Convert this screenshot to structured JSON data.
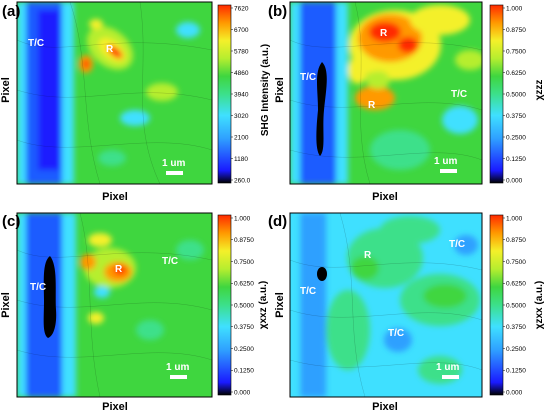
{
  "chart_data": [
    {
      "type": "heatmap",
      "panel": "(a)",
      "xlabel": "Pixel",
      "ylabel": "Pixel",
      "colorbar_label": "SHG Intensity (a.u.)",
      "colorbar_ticks": [
        "7620",
        "6700",
        "5780",
        "4860",
        "3940",
        "3020",
        "2100",
        "1180",
        "260.0"
      ],
      "colorbar_range": [
        260,
        7620
      ],
      "regions": [
        "T/C",
        "R"
      ],
      "scale_bar": "1 um",
      "colormap": [
        "#000000",
        "#1a1aff",
        "#2fa0ff",
        "#3fe0ff",
        "#3ce08a",
        "#3fd63f",
        "#b6ee2f",
        "#f4f02a",
        "#ff9900",
        "#ff2a00"
      ]
    },
    {
      "type": "heatmap",
      "panel": "(b)",
      "xlabel": "Pixel",
      "ylabel": "Pixel",
      "colorbar_label": "χzzz",
      "colorbar_ticks": [
        "1.000",
        "0.8750",
        "0.7500",
        "0.6250",
        "0.5000",
        "0.3750",
        "0.2500",
        "0.1250",
        "0.000"
      ],
      "colorbar_range": [
        0,
        1
      ],
      "regions": [
        "R",
        "T/C",
        "R",
        "T/C"
      ],
      "scale_bar": "1 um"
    },
    {
      "type": "heatmap",
      "panel": "(c)",
      "xlabel": "Pixel",
      "ylabel": "Pixel",
      "colorbar_label": "χxxz (a.u.)",
      "colorbar_ticks": [
        "1.000",
        "0.8750",
        "0.7500",
        "0.6250",
        "0.5000",
        "0.3750",
        "0.2500",
        "0.1250",
        "0.000"
      ],
      "colorbar_range": [
        0,
        1
      ],
      "regions": [
        "T/C",
        "R",
        "T/C"
      ],
      "scale_bar": "1 um"
    },
    {
      "type": "heatmap",
      "panel": "(d)",
      "xlabel": "Pixel",
      "ylabel": "Pixel",
      "colorbar_label": "χzxx (a.u.)",
      "colorbar_ticks": [
        "1.000",
        "0.8750",
        "0.7500",
        "0.6250",
        "0.5000",
        "0.3750",
        "0.2500",
        "0.1250",
        "0.000"
      ],
      "colorbar_range": [
        0,
        1
      ],
      "regions": [
        "T/C",
        "R",
        "T/C",
        "T/C"
      ],
      "scale_bar": "1 um"
    }
  ]
}
